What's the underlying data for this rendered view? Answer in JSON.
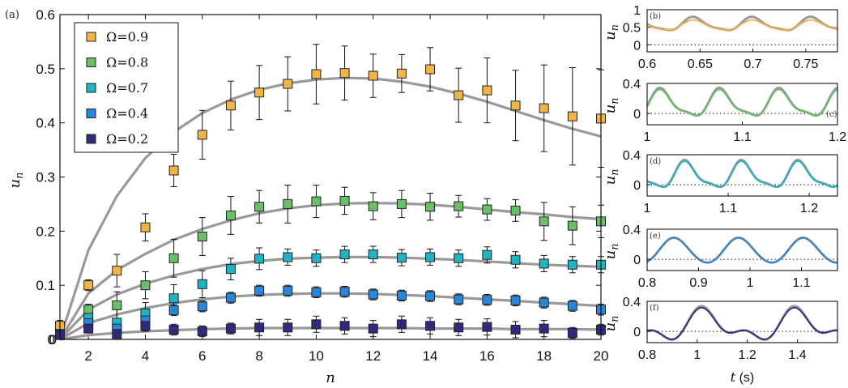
{
  "colors": {
    "theory": "#999999",
    "series": [
      "#f0b447",
      "#6abf69",
      "#1fb4c4",
      "#2a86d8",
      "#2e2a7e"
    ]
  },
  "chart_data": [
    {
      "panel": "(a)",
      "type": "scatter",
      "xlabel": "n",
      "ylabel": "u_n",
      "xlim": [
        1,
        20
      ],
      "ylim": [
        0,
        0.6
      ],
      "xticks": [
        "2",
        "4",
        "6",
        "8",
        "10",
        "12",
        "14",
        "16",
        "18",
        "20"
      ],
      "yticks": [
        "0",
        "0.1",
        "0.2",
        "0.3",
        "0.4",
        "0.5",
        "0.6"
      ],
      "legend_position": "top-left",
      "series": [
        {
          "name": "Ω=0.9",
          "x": [
            1,
            2,
            3,
            4,
            5,
            6,
            7,
            8,
            9,
            10,
            11,
            12,
            13,
            14,
            15,
            16,
            17,
            18,
            19,
            20
          ],
          "y": [
            0.025,
            0.1,
            0.127,
            0.207,
            0.312,
            0.378,
            0.432,
            0.456,
            0.472,
            0.49,
            0.492,
            0.487,
            0.491,
            0.499,
            0.451,
            0.46,
            0.432,
            0.427,
            0.412,
            0.408
          ],
          "err": [
            0.01,
            0.01,
            0.03,
            0.025,
            0.03,
            0.045,
            0.045,
            0.05,
            0.05,
            0.055,
            0.05,
            0.04,
            0.035,
            0.04,
            0.05,
            0.06,
            0.065,
            0.08,
            0.09,
            0.09
          ],
          "theory": [
            0.0,
            0.165,
            0.265,
            0.335,
            0.383,
            0.418,
            0.443,
            0.461,
            0.473,
            0.48,
            0.483,
            0.482,
            0.476,
            0.467,
            0.454,
            0.439,
            0.422,
            0.405,
            0.389,
            0.375
          ]
        },
        {
          "name": "Ω=0.8",
          "x": [
            1,
            2,
            3,
            4,
            5,
            6,
            7,
            8,
            9,
            10,
            11,
            12,
            13,
            14,
            15,
            16,
            17,
            18,
            19,
            20
          ],
          "y": [
            0.01,
            0.055,
            0.063,
            0.1,
            0.15,
            0.19,
            0.229,
            0.245,
            0.25,
            0.255,
            0.256,
            0.246,
            0.25,
            0.245,
            0.246,
            0.24,
            0.238,
            0.218,
            0.21,
            0.218
          ],
          "err": [
            0.01,
            0.01,
            0.025,
            0.025,
            0.035,
            0.035,
            0.035,
            0.03,
            0.035,
            0.03,
            0.025,
            0.025,
            0.025,
            0.025,
            0.02,
            0.02,
            0.02,
            0.035,
            0.035,
            0.03
          ],
          "theory": [
            0.0,
            0.085,
            0.128,
            0.158,
            0.184,
            0.204,
            0.22,
            0.233,
            0.242,
            0.248,
            0.251,
            0.252,
            0.251,
            0.249,
            0.245,
            0.24,
            0.235,
            0.231,
            0.226,
            0.222
          ]
        },
        {
          "name": "Ω=0.7",
          "x": [
            1,
            2,
            3,
            4,
            5,
            6,
            7,
            8,
            9,
            10,
            11,
            12,
            13,
            14,
            15,
            16,
            17,
            18,
            19,
            20
          ],
          "y": [
            0.01,
            0.04,
            0.031,
            0.048,
            0.076,
            0.102,
            0.13,
            0.149,
            0.152,
            0.15,
            0.157,
            0.157,
            0.151,
            0.152,
            0.15,
            0.156,
            0.147,
            0.14,
            0.138,
            0.138
          ],
          "err": [
            0.005,
            0.01,
            0.025,
            0.02,
            0.025,
            0.025,
            0.02,
            0.02,
            0.015,
            0.015,
            0.015,
            0.015,
            0.015,
            0.015,
            0.015,
            0.015,
            0.015,
            0.015,
            0.015,
            0.015
          ],
          "theory": [
            0.0,
            0.055,
            0.083,
            0.103,
            0.118,
            0.13,
            0.139,
            0.145,
            0.149,
            0.151,
            0.152,
            0.152,
            0.151,
            0.149,
            0.147,
            0.144,
            0.141,
            0.138,
            0.136,
            0.134
          ]
        },
        {
          "name": "Ω=0.4",
          "x": [
            1,
            2,
            3,
            4,
            5,
            6,
            7,
            8,
            9,
            10,
            11,
            12,
            13,
            14,
            15,
            16,
            17,
            18,
            19,
            20
          ],
          "y": [
            0.01,
            0.03,
            0.02,
            0.035,
            0.054,
            0.061,
            0.077,
            0.09,
            0.09,
            0.087,
            0.088,
            0.083,
            0.081,
            0.08,
            0.074,
            0.073,
            0.072,
            0.068,
            0.062,
            0.055
          ],
          "err": [
            0.005,
            0.005,
            0.015,
            0.015,
            0.01,
            0.01,
            0.01,
            0.01,
            0.01,
            0.01,
            0.01,
            0.01,
            0.01,
            0.01,
            0.01,
            0.01,
            0.01,
            0.01,
            0.01,
            0.01
          ],
          "theory": [
            0.0,
            0.03,
            0.046,
            0.058,
            0.067,
            0.074,
            0.079,
            0.082,
            0.084,
            0.085,
            0.085,
            0.084,
            0.082,
            0.08,
            0.077,
            0.074,
            0.071,
            0.068,
            0.065,
            0.062
          ]
        },
        {
          "name": "Ω=0.2",
          "x": [
            1,
            2,
            3,
            4,
            5,
            6,
            7,
            8,
            9,
            10,
            11,
            12,
            13,
            14,
            15,
            16,
            17,
            18,
            19,
            20
          ],
          "y": [
            0.008,
            0.02,
            0.01,
            0.025,
            0.018,
            0.015,
            0.02,
            0.022,
            0.022,
            0.028,
            0.025,
            0.02,
            0.028,
            0.025,
            0.022,
            0.023,
            0.018,
            0.02,
            0.012,
            0.018
          ],
          "err": [
            0.005,
            0.005,
            0.01,
            0.01,
            0.01,
            0.01,
            0.01,
            0.015,
            0.015,
            0.015,
            0.015,
            0.015,
            0.015,
            0.015,
            0.015,
            0.015,
            0.015,
            0.015,
            0.01,
            0.01
          ],
          "theory": [
            0.0,
            0.008,
            0.012,
            0.015,
            0.017,
            0.019,
            0.02,
            0.021,
            0.021,
            0.021,
            0.021,
            0.021,
            0.021,
            0.02,
            0.02,
            0.02,
            0.019,
            0.019,
            0.019,
            0.018
          ]
        }
      ]
    },
    {
      "panel": "(b)",
      "type": "line",
      "ylabel": "u_n",
      "xlim": [
        0.6,
        0.78
      ],
      "ylim": [
        -0.2,
        1.0
      ],
      "xticks": [
        "0.6",
        "0.65",
        "0.7",
        "0.75"
      ],
      "yticks": [
        "0",
        "0.5",
        "1"
      ],
      "period": 0.0556,
      "phase": 0.033,
      "series": [
        {
          "name": "",
          "mean": 0.58,
          "amp": 0.18,
          "harm": 0.25
        },
        {
          "name": "",
          "mean": 0.55,
          "amp": 0.14,
          "harm": 0.15
        }
      ]
    },
    {
      "panel": "(c)",
      "type": "line",
      "ylabel": "u_n",
      "xlim": [
        1.0,
        1.2
      ],
      "ylim": [
        -0.15,
        0.4
      ],
      "xticks": [
        "1",
        "1.1",
        "1.2"
      ],
      "yticks": [
        "0",
        "0.4"
      ],
      "period": 0.0625,
      "phase": 1.015,
      "series": [
        {
          "name": "",
          "mean": 0.125,
          "amp": 0.17,
          "harm": 0.3
        },
        {
          "name": "",
          "mean": 0.115,
          "amp": 0.16,
          "harm": 0.3
        }
      ]
    },
    {
      "panel": "(d)",
      "type": "line",
      "ylabel": "u_n",
      "xlim": [
        1.0,
        1.235
      ],
      "ylim": [
        -0.15,
        0.4
      ],
      "xticks": [
        "1",
        "1.1",
        "1.2"
      ],
      "yticks": [
        "0",
        "0.4"
      ],
      "period": 0.07,
      "phase": 1.048,
      "series": [
        {
          "name": "",
          "mean": 0.12,
          "amp": 0.165,
          "harm": 0.3
        },
        {
          "name": "",
          "mean": 0.11,
          "amp": 0.16,
          "harm": 0.3
        }
      ]
    },
    {
      "panel": "(e)",
      "type": "line",
      "ylabel": "u_n",
      "xlim": [
        0.8,
        1.17
      ],
      "ylim": [
        -0.15,
        0.4
      ],
      "xticks": [
        "0.8",
        "0.9",
        "1",
        "1.1"
      ],
      "yticks": [
        "0",
        "0.4"
      ],
      "period": 0.1255,
      "phase": 0.853,
      "series": [
        {
          "name": "",
          "mean": 0.115,
          "amp": 0.165,
          "harm": 0.05
        },
        {
          "name": "",
          "mean": 0.115,
          "amp": 0.165,
          "harm": 0.05
        }
      ]
    },
    {
      "panel": "(f)",
      "type": "line",
      "ylabel": "u_n",
      "xlabel": "t (s)",
      "xlim": [
        0.8,
        1.56
      ],
      "ylim": [
        -0.15,
        0.4
      ],
      "xticks": [
        "0.8",
        "1",
        "1.2",
        "1.4"
      ],
      "yticks": [
        "0",
        "0.4"
      ],
      "period": 0.37,
      "phase": 1.03,
      "series": [
        {
          "name": "",
          "mean": 0.07,
          "amp": 0.17,
          "harm": 0.6
        },
        {
          "name": "",
          "mean": 0.065,
          "amp": 0.16,
          "harm": 0.6
        }
      ]
    }
  ]
}
